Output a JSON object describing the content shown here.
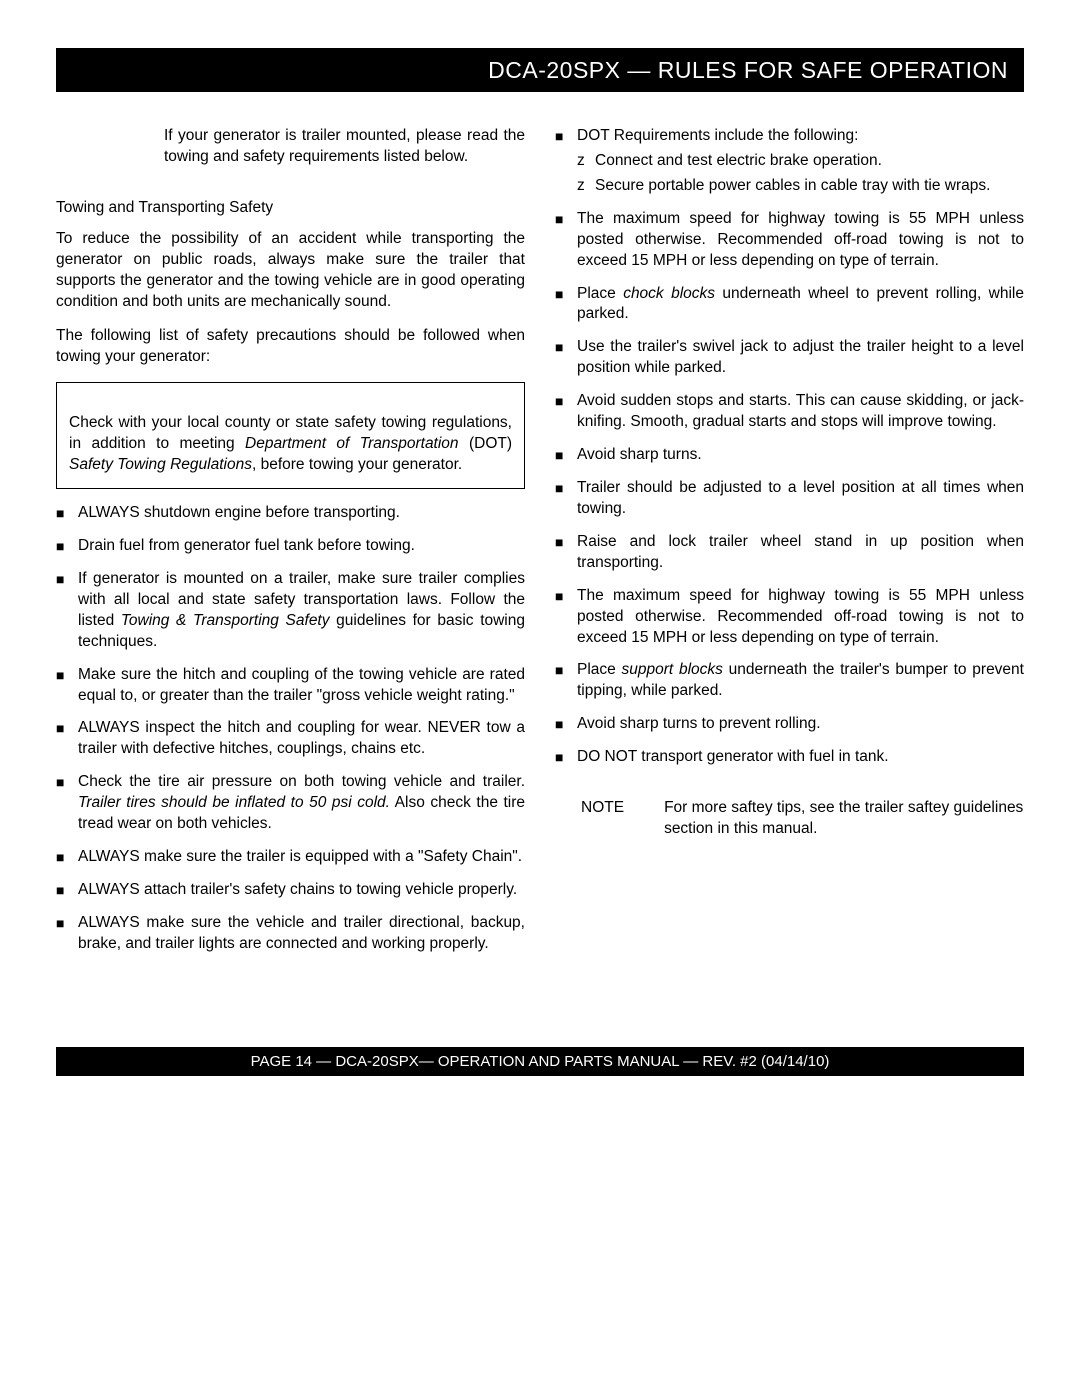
{
  "header": {
    "title": "DCA-20SPX — RULES FOR SAFE OPERATION"
  },
  "intro": "If your generator is trailer mounted, please read the towing and safety requirements listed below.",
  "subhead": "Towing and Transporting Safety",
  "para1": "To reduce the possibility of an accident while transporting the generator on public roads, always make sure the trailer that supports the generator and the towing vehicle are in good operating condition and both units are mechanically sound.",
  "para2": "The following list of safety precautions should be followed when towing your generator:",
  "box": {
    "p1a": "Check with your local county or state safety towing regulations, in addition to meeting ",
    "p1b": "Department of Transportation",
    "p1c": " (DOT) ",
    "p1d": "Safety Towing Regulations",
    "p1e": ", before towing your generator."
  },
  "left_bullets": {
    "b0": "ALWAYS shutdown engine before transporting.",
    "b1": "Drain fuel from generator fuel tank before towing.",
    "b2a": "If generator is mounted on a trailer, make sure trailer complies with all local and state safety transportation laws. Follow the listed ",
    "b2b": "Towing & Transporting Safety",
    "b2c": " guidelines for basic towing techniques.",
    "b3": "Make sure  the hitch and coupling of the towing vehicle are rated equal to, or greater than the trailer \"gross vehicle weight rating.\"",
    "b4": "ALWAYS inspect the hitch and coupling for wear.  NEVER tow a trailer with defective hitches, couplings, chains etc.",
    "b5a": "Check the tire air pressure on both towing vehicle and trailer.  ",
    "b5b": "Trailer tires should be inflated to 50 psi cold.",
    "b5c": " Also check the tire tread wear on both vehicles.",
    "b6": "ALWAYS make sure the trailer is equipped with a \"Safety Chain\".",
    "b7": "ALWAYS attach trailer's safety chains to towing vehicle properly.",
    "b8": "ALWAYS make sure the vehicle and trailer directional, backup, brake, and trailer lights are connected and working properly."
  },
  "right_bullets": {
    "b0": "DOT Requirements include the following:",
    "b0s0": "Connect and test electric brake operation.",
    "b0s1": "Secure portable power cables in cable tray with tie wraps.",
    "b1": "The maximum speed for highway towing is 55 MPH unless posted otherwise.  Recommended off-road towing is not to exceed 15 MPH or less depending on type of terrain.",
    "b2a": "Place ",
    "b2b": "chock blocks",
    "b2c": " underneath wheel to prevent rolling, while parked.",
    "b3": "Use the trailer's swivel jack to adjust the trailer height to a level position while parked.",
    "b4": "Avoid sudden stops and starts. This can cause skidding, or jack-knifing. Smooth, gradual starts and stops will improve towing.",
    "b5": "Avoid sharp turns.",
    "b6": "Trailer should be adjusted to a level position at all times when towing.",
    "b7": "Raise and lock trailer wheel stand in up position when transporting.",
    "b8": "The maximum speed for highway towing is 55 MPH unless posted otherwise.  Recommended off-road towing is not to exceed 15 MPH or less depending on type of terrain.",
    "b9a": "Place ",
    "b9b": "support blocks",
    "b9c": " underneath the trailer's bumper to prevent tipping, while parked.",
    "b10": "Avoid sharp turns to prevent rolling.",
    "b11": "DO NOT transport generator with fuel in tank."
  },
  "note": {
    "label": "NOTE",
    "text": "For more saftey tips, see the trailer saftey guidelines section in this manual."
  },
  "footer": "PAGE 14 — DCA-20SPX—  OPERATION AND PARTS  MANUAL — REV. #2  (04/14/10)"
}
